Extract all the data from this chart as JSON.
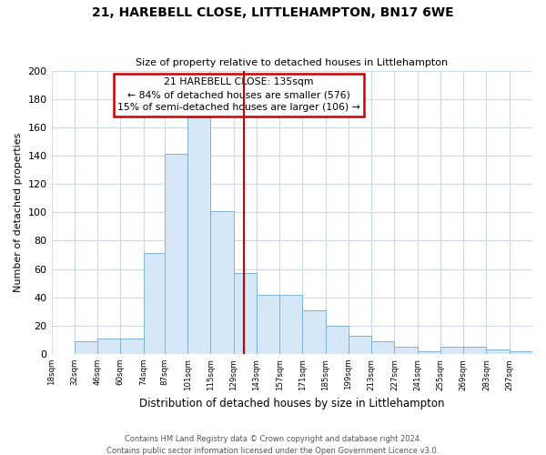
{
  "title": "21, HAREBELL CLOSE, LITTLEHAMPTON, BN17 6WE",
  "subtitle": "Size of property relative to detached houses in Littlehampton",
  "xlabel": "Distribution of detached houses by size in Littlehampton",
  "ylabel": "Number of detached properties",
  "bin_edges": [
    18,
    32,
    46,
    60,
    74,
    87,
    101,
    115,
    129,
    143,
    157,
    171,
    185,
    199,
    213,
    227,
    241,
    255,
    269,
    283,
    297,
    311
  ],
  "counts": [
    0,
    9,
    11,
    11,
    71,
    141,
    167,
    101,
    57,
    42,
    42,
    31,
    20,
    13,
    9,
    5,
    2,
    5,
    5,
    3,
    2
  ],
  "bar_color": "#d6e8f7",
  "bar_edgecolor": "#7fb3d9",
  "vline_x": 135,
  "vline_color": "#cc0000",
  "annotation_title": "21 HAREBELL CLOSE: 135sqm",
  "annotation_line1": "← 84% of detached houses are smaller (576)",
  "annotation_line2": "15% of semi-detached houses are larger (106) →",
  "annotation_box_edgecolor": "#cc0000",
  "annotation_box_facecolor": "#ffffff",
  "ylim": [
    0,
    200
  ],
  "yticks": [
    0,
    20,
    40,
    60,
    80,
    100,
    120,
    140,
    160,
    180,
    200
  ],
  "tick_labels": [
    "18sqm",
    "32sqm",
    "46sqm",
    "60sqm",
    "74sqm",
    "87sqm",
    "101sqm",
    "115sqm",
    "129sqm",
    "143sqm",
    "157sqm",
    "171sqm",
    "185sqm",
    "199sqm",
    "213sqm",
    "227sqm",
    "241sqm",
    "255sqm",
    "269sqm",
    "283sqm",
    "297sqm"
  ],
  "footer1": "Contains HM Land Registry data © Crown copyright and database right 2024.",
  "footer2": "Contains public sector information licensed under the Open Government Licence v3.0.",
  "background_color": "#ffffff",
  "grid_color": "#d0d8e4"
}
